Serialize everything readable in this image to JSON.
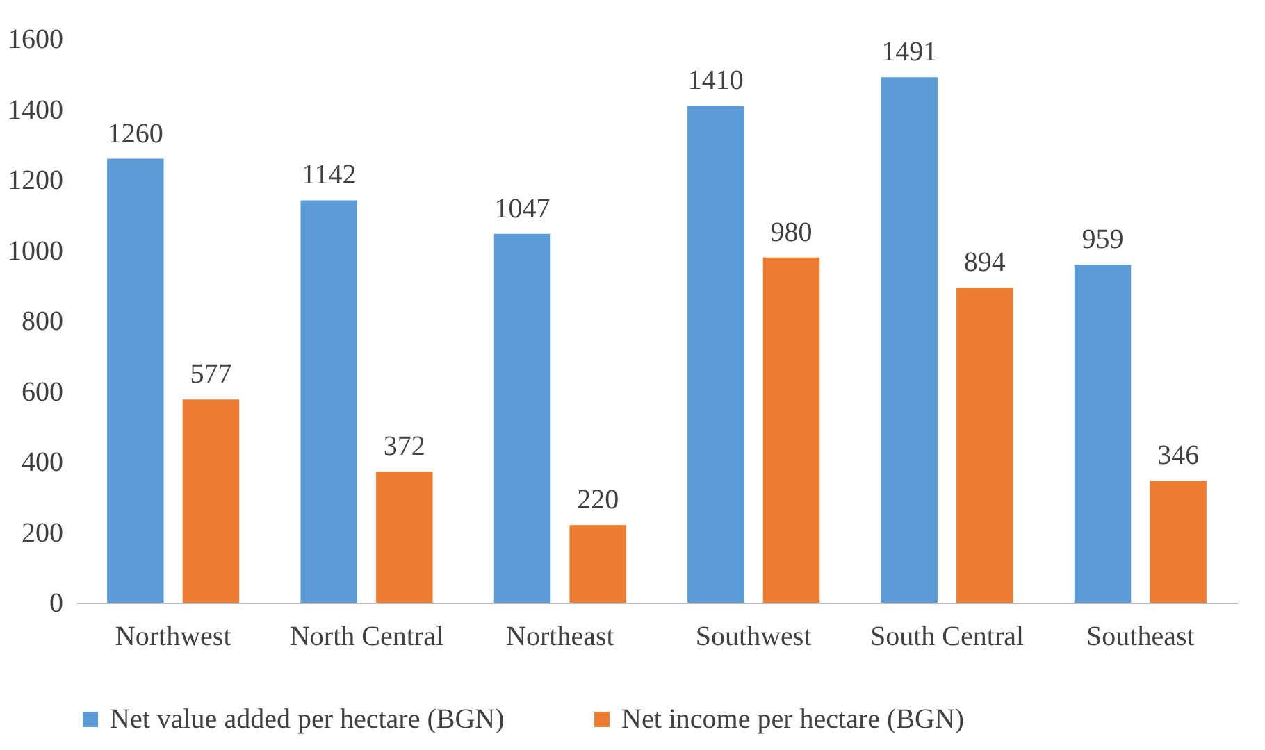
{
  "chart_data": {
    "type": "bar",
    "categories": [
      "Northwest",
      "North Central",
      "Northeast",
      "Southwest",
      "South Central",
      "Southeast"
    ],
    "series": [
      {
        "name": "Net value added per hectare (BGN)",
        "color": "#5b9bd5",
        "values": [
          1260,
          1142,
          1047,
          1410,
          1491,
          959
        ]
      },
      {
        "name": "Net income per hectare (BGN)",
        "color": "#ed7d31",
        "values": [
          577,
          372,
          220,
          980,
          894,
          346
        ]
      }
    ],
    "ylim": [
      0,
      1600
    ],
    "yticks": [
      0,
      200,
      400,
      600,
      800,
      1000,
      1200,
      1400,
      1600
    ],
    "data_labels": true,
    "legend": "bottom"
  }
}
